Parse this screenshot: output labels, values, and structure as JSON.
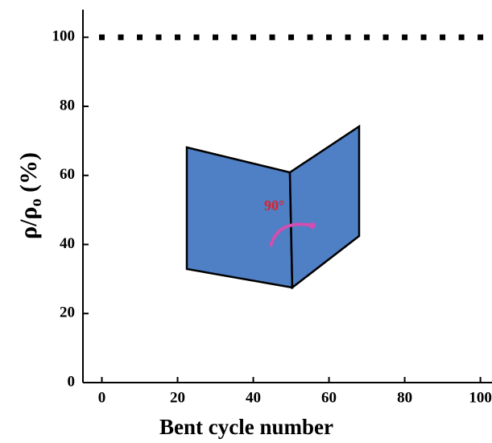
{
  "chart_data": {
    "type": "scatter",
    "x_label": "Bent cycle number",
    "y_label": {
      "main": "ρ/ρ",
      "sub": "o",
      "unit": " (%)"
    },
    "annotation": "90°",
    "series": [
      {
        "color": "#000000",
        "x": [
          0,
          5,
          10,
          15,
          20,
          25,
          30,
          35,
          40,
          45,
          50,
          55,
          60,
          65,
          70,
          75,
          80,
          85,
          90,
          95,
          100
        ],
        "values": [
          100,
          100,
          100,
          100,
          100,
          100,
          100,
          100,
          100,
          100,
          100,
          100,
          100,
          100,
          100,
          100,
          100,
          100,
          100,
          100,
          100
        ]
      }
    ],
    "xlim": [
      -5,
      102
    ],
    "xticks": [
      0,
      20,
      40,
      60,
      80,
      100
    ],
    "ylim": [
      0,
      108
    ],
    "yticks": [
      0,
      20,
      40,
      60,
      80,
      100
    ]
  }
}
